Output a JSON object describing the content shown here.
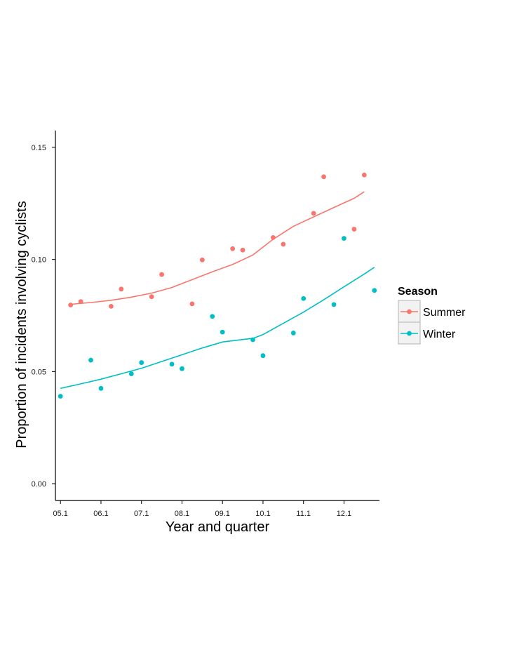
{
  "chart_data": {
    "type": "scatter",
    "title": "",
    "xlabel": "Year and quarter",
    "ylabel": "Proportion of incidents involving cyclists",
    "x_tick_labels": [
      "05.1",
      "06.1",
      "07.1",
      "08.1",
      "09.1",
      "10.1",
      "11.1",
      "12.1"
    ],
    "x_tick_values": [
      0,
      4,
      8,
      12,
      16,
      20,
      24,
      28
    ],
    "xlim": [
      -0.5,
      31.5
    ],
    "y_tick_labels": [
      "0.00",
      "0.05",
      "0.10",
      "0.15"
    ],
    "y_tick_values": [
      0,
      0.05,
      0.1,
      0.15
    ],
    "ylim": [
      -0.0075,
      0.1575
    ],
    "grid": false,
    "legend": {
      "title": "Season",
      "position": "right"
    },
    "series": [
      {
        "name": "Summer",
        "color": "#F8766D",
        "points": {
          "x": [
            1,
            2,
            5,
            6,
            9,
            10,
            13,
            14,
            17,
            18,
            21,
            22,
            25,
            26,
            29,
            30
          ],
          "y": [
            0.0797,
            0.0812,
            0.0791,
            0.0868,
            0.0834,
            0.0933,
            0.0802,
            0.0998,
            0.1048,
            0.1042,
            0.1098,
            0.1068,
            0.1206,
            0.1369,
            0.1135,
            0.1377
          ]
        },
        "smooth": {
          "x": [
            1,
            3,
            5,
            7,
            9,
            11,
            13,
            15,
            17,
            19,
            21,
            23,
            25,
            27,
            29,
            30
          ],
          "y": [
            0.08,
            0.0808,
            0.0818,
            0.0832,
            0.085,
            0.0875,
            0.091,
            0.0945,
            0.0978,
            0.102,
            0.109,
            0.1148,
            0.119,
            0.1232,
            0.1273,
            0.1302
          ]
        }
      },
      {
        "name": "Winter",
        "color": "#00BFC4",
        "points": {
          "x": [
            0,
            3,
            4,
            7,
            8,
            11,
            12,
            15,
            16,
            19,
            20,
            23,
            24,
            27,
            28,
            31
          ],
          "y": [
            0.039,
            0.0551,
            0.0425,
            0.049,
            0.054,
            0.0533,
            0.0513,
            0.0746,
            0.0676,
            0.0642,
            0.0571,
            0.0672,
            0.0826,
            0.0799,
            0.1094,
            0.0862
          ]
        },
        "smooth": {
          "x": [
            0,
            2,
            4,
            6,
            8,
            10,
            12,
            14,
            16,
            18,
            19,
            20,
            22,
            24,
            26,
            28,
            30,
            31
          ],
          "y": [
            0.0425,
            0.0445,
            0.0466,
            0.049,
            0.0515,
            0.0545,
            0.0575,
            0.0605,
            0.0632,
            0.0643,
            0.0648,
            0.0665,
            0.0715,
            0.0765,
            0.082,
            0.0878,
            0.0935,
            0.0965
          ]
        }
      }
    ]
  }
}
